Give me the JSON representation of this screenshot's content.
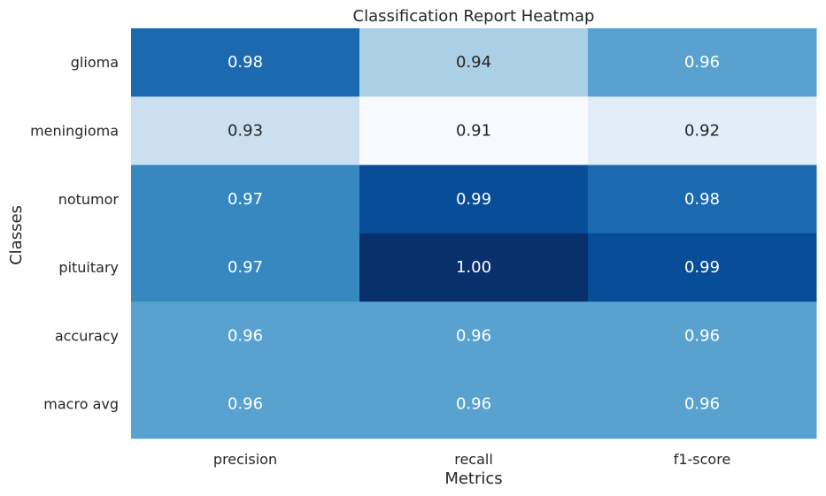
{
  "chart_data": {
    "type": "heatmap",
    "title": "Classification Report Heatmap",
    "xlabel": "Metrics",
    "ylabel": "Classes",
    "x_categories": [
      "precision",
      "recall",
      "f1-score"
    ],
    "y_categories": [
      "glioma",
      "meningioma",
      "notumor",
      "pituitary",
      "accuracy",
      "macro avg"
    ],
    "values": [
      [
        0.98,
        0.94,
        0.96
      ],
      [
        0.93,
        0.91,
        0.92
      ],
      [
        0.97,
        0.99,
        0.98
      ],
      [
        0.97,
        1.0,
        0.99
      ],
      [
        0.96,
        0.96,
        0.96
      ],
      [
        0.96,
        0.96,
        0.96
      ]
    ],
    "cell_labels": [
      [
        "0.98",
        "0.94",
        "0.96"
      ],
      [
        "0.93",
        "0.91",
        "0.92"
      ],
      [
        "0.97",
        "0.99",
        "0.98"
      ],
      [
        "0.97",
        "1.00",
        "0.99"
      ],
      [
        "0.96",
        "0.96",
        "0.96"
      ],
      [
        "0.96",
        "0.96",
        "0.96"
      ]
    ],
    "colormap": "Blues",
    "colors": {
      "low": "#f7fbff",
      "high": "#08306b",
      "text_dark": "#262626",
      "text_light": "#ffffff"
    },
    "colorbar": false
  }
}
